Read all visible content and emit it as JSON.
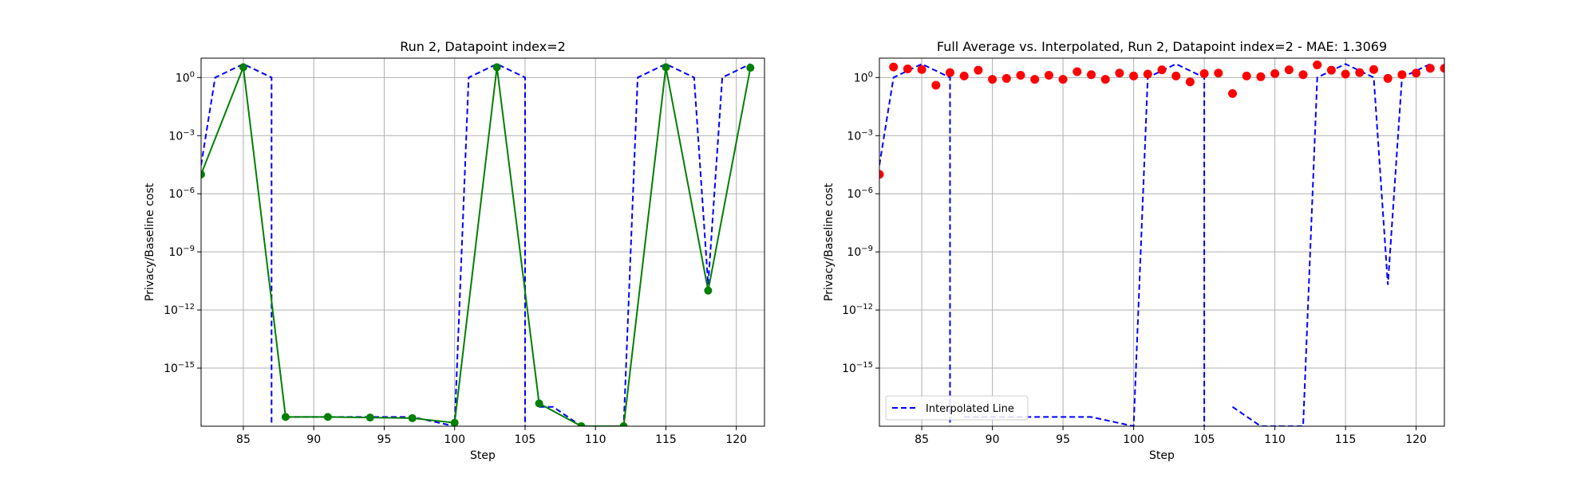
{
  "chart_data": [
    {
      "type": "line",
      "title": "Run 2, Datapoint index=2",
      "xlabel": "Step",
      "ylabel": "Privacy/Baseline cost",
      "yscale": "log",
      "xlim": [
        82,
        122
      ],
      "ylim": [
        1e-18,
        10
      ],
      "xticks": [
        85,
        90,
        95,
        100,
        105,
        110,
        115,
        120
      ],
      "yticks": [
        {
          "value": 1,
          "label": "10^0"
        },
        {
          "value": 0.001,
          "label": "10^-3"
        },
        {
          "value": 1e-06,
          "label": "10^-6"
        },
        {
          "value": 1e-09,
          "label": "10^-9"
        },
        {
          "value": 1e-12,
          "label": "10^-12"
        },
        {
          "value": 1e-15,
          "label": "10^-15"
        }
      ],
      "grid": true,
      "series": [
        {
          "style": "dashed",
          "color": "#0000ff",
          "segments": [
            [
              [
                82,
                3e-05
              ],
              [
                83,
                1
              ],
              [
                85,
                5
              ],
              [
                87,
                1
              ],
              [
                87,
                1e-18
              ]
            ],
            [
              [
                88,
                3e-18
              ],
              [
                97,
                3e-18
              ],
              [
                100,
                1e-18
              ],
              [
                101,
                1
              ],
              [
                103,
                5
              ],
              [
                105,
                1
              ],
              [
                105,
                1e-18
              ]
            ],
            [
              [
                106,
                1e-17
              ],
              [
                107,
                1e-17
              ],
              [
                109,
                1e-18
              ],
              [
                112,
                1e-18
              ],
              [
                113,
                1
              ],
              [
                115,
                5
              ],
              [
                117,
                1
              ],
              [
                118,
                2e-11
              ],
              [
                119,
                1
              ],
              [
                121,
                5
              ]
            ]
          ]
        },
        {
          "style": "solid",
          "markers": "circle",
          "color": "#008000",
          "points": [
            [
              82,
              1e-05
            ],
            [
              85,
              3.4
            ],
            [
              88,
              3e-18
            ],
            [
              91,
              3e-18
            ],
            [
              94,
              2.8e-18
            ],
            [
              97,
              2.6e-18
            ],
            [
              100,
              1.5e-18
            ],
            [
              103,
              3.4
            ],
            [
              106,
              1.5e-17
            ],
            [
              109,
              1e-18
            ],
            [
              112,
              1e-18
            ],
            [
              115,
              3.4
            ],
            [
              118,
              1e-11
            ],
            [
              121,
              3.2
            ]
          ]
        }
      ]
    },
    {
      "type": "line",
      "title": "Full Average vs. Interpolated, Run 2, Datapoint index=2 - MAE: 1.3069",
      "xlabel": "Step",
      "ylabel": "Privacy/Baseline cost",
      "yscale": "log",
      "xlim": [
        82,
        122
      ],
      "ylim": [
        1e-18,
        10
      ],
      "xticks": [
        85,
        90,
        95,
        100,
        105,
        110,
        115,
        120
      ],
      "yticks": [
        {
          "value": 1,
          "label": "10^0"
        },
        {
          "value": 0.001,
          "label": "10^-3"
        },
        {
          "value": 1e-06,
          "label": "10^-6"
        },
        {
          "value": 1e-09,
          "label": "10^-9"
        },
        {
          "value": 1e-12,
          "label": "10^-12"
        },
        {
          "value": 1e-15,
          "label": "10^-15"
        }
      ],
      "grid": true,
      "legend": {
        "location": "lower-left",
        "entries": [
          "Interpolated Line"
        ]
      },
      "series": [
        {
          "name": "Interpolated Line",
          "style": "dashed",
          "color": "#0000ff",
          "segments": [
            [
              [
                82,
                3e-05
              ],
              [
                83,
                1
              ],
              [
                85,
                5
              ],
              [
                87,
                1
              ],
              [
                87,
                1e-18
              ]
            ],
            [
              [
                88,
                3e-18
              ],
              [
                97,
                3e-18
              ],
              [
                100,
                1e-18
              ],
              [
                101,
                1
              ],
              [
                103,
                5
              ],
              [
                105,
                1
              ],
              [
                105,
                1e-18
              ]
            ],
            [
              [
                107,
                1e-17
              ],
              [
                109,
                1e-18
              ],
              [
                112,
                1e-18
              ],
              [
                113,
                1
              ],
              [
                115,
                5
              ],
              [
                117,
                1
              ],
              [
                118,
                2e-11
              ],
              [
                119,
                1
              ],
              [
                121,
                5
              ]
            ]
          ]
        },
        {
          "style": "scatter",
          "color": "#ff0000",
          "points": [
            [
              82,
              1e-05
            ],
            [
              83,
              3.5
            ],
            [
              84,
              2.8
            ],
            [
              85,
              2.6
            ],
            [
              86,
              0.4
            ],
            [
              87,
              1.8
            ],
            [
              88,
              1.2
            ],
            [
              89,
              2.4
            ],
            [
              90,
              0.8
            ],
            [
              91,
              0.9
            ],
            [
              92,
              1.3
            ],
            [
              93,
              0.8
            ],
            [
              94,
              1.3
            ],
            [
              95,
              0.8
            ],
            [
              96,
              2
            ],
            [
              97,
              1.4
            ],
            [
              98,
              0.8
            ],
            [
              99,
              1.7
            ],
            [
              100,
              1.2
            ],
            [
              101,
              1.5
            ],
            [
              102,
              2.5
            ],
            [
              103,
              1.2
            ],
            [
              104,
              0.6
            ],
            [
              105,
              1.6
            ],
            [
              106,
              1.7
            ],
            [
              107,
              0.15
            ],
            [
              108,
              1.2
            ],
            [
              109,
              1.1
            ],
            [
              110,
              1.6
            ],
            [
              111,
              2.5
            ],
            [
              112,
              1.4
            ],
            [
              113,
              4.5
            ],
            [
              114,
              2.4
            ],
            [
              115,
              1.5
            ],
            [
              116,
              1.8
            ],
            [
              117,
              2.6
            ],
            [
              118,
              0.9
            ],
            [
              119,
              1.4
            ],
            [
              120,
              1.7
            ],
            [
              121,
              3
            ],
            [
              122,
              3
            ]
          ]
        }
      ]
    }
  ]
}
